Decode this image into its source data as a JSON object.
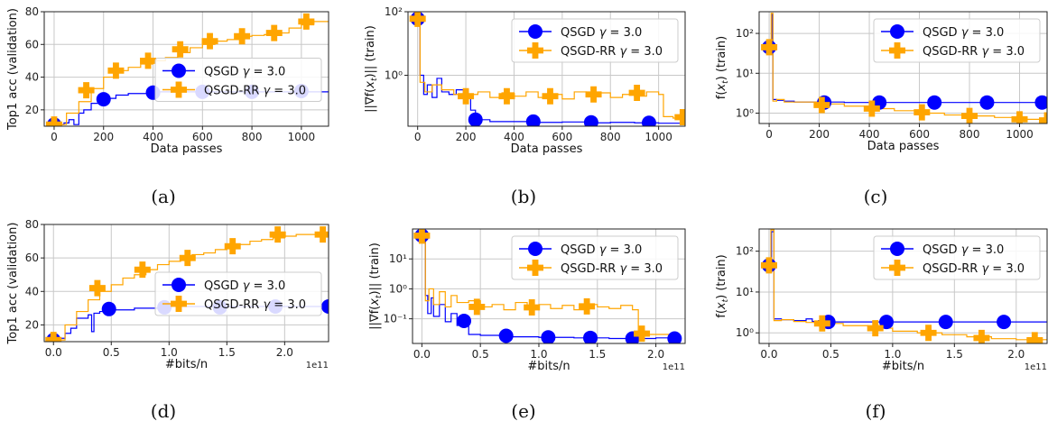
{
  "colors": {
    "qsgd": "#0000ff",
    "rr": "#ffa500",
    "grid": "#c8c8c8"
  },
  "chart_data": [
    {
      "type": "line",
      "caption": "(a)",
      "xlabel": "Data passes",
      "ylabel": "Top1 acc (validation)",
      "xlim": [
        -40,
        1110
      ],
      "ylim": [
        10,
        80
      ],
      "yscale": "linear",
      "xticks": [
        0,
        200,
        400,
        600,
        800,
        1000
      ],
      "xticklabels": [
        "0",
        "200",
        "400",
        "600",
        "800",
        "1000"
      ],
      "yticks": [
        20,
        40,
        60,
        80
      ],
      "yticklabels": [
        "20",
        "40",
        "60",
        "80"
      ],
      "xoffset": "",
      "grid": true,
      "legend": "center-right",
      "series": [
        {
          "name": "QSGD γ = 3.0",
          "color": "#0000ff",
          "marker": "circle",
          "x": [
            0,
            40,
            60,
            80,
            100,
            120,
            150,
            180,
            200,
            250,
            300,
            400,
            600,
            800,
            1000,
            1110
          ],
          "y": [
            11,
            12,
            14,
            11,
            18,
            20,
            24,
            26,
            27,
            29,
            30,
            31,
            31,
            31,
            31,
            31
          ],
          "mx": [
            0,
            200,
            400,
            600,
            800,
            1000
          ],
          "my": [
            11,
            26.5,
            30.5,
            31,
            31,
            31.5
          ]
        },
        {
          "name": "QSGD-RR γ = 3.0",
          "color": "#ffa500",
          "marker": "plus",
          "x": [
            0,
            50,
            100,
            150,
            200,
            250,
            300,
            350,
            400,
            450,
            500,
            550,
            600,
            650,
            700,
            750,
            800,
            850,
            900,
            950,
            1000,
            1050,
            1110
          ],
          "y": [
            11,
            18,
            25,
            33,
            40,
            44,
            46,
            48,
            50,
            52,
            55,
            58,
            60,
            62,
            63,
            65,
            65.5,
            66,
            67,
            70,
            72,
            74,
            74
          ],
          "mx": [
            0,
            130,
            250,
            380,
            510,
            630,
            760,
            890,
            1020
          ],
          "my": [
            11,
            32,
            44,
            50,
            57,
            62,
            65,
            67,
            74
          ]
        }
      ]
    },
    {
      "type": "line",
      "caption": "(b)",
      "xlabel": "Data passes",
      "ylabel": "||∇f(xt)|| (train)",
      "xlim": [
        -40,
        1110
      ],
      "ylim": [
        0.025,
        100
      ],
      "yscale": "log",
      "xticks": [
        0,
        200,
        400,
        600,
        800,
        1000
      ],
      "xticklabels": [
        "0",
        "200",
        "400",
        "600",
        "800",
        "1000"
      ],
      "yticks": [
        1,
        100
      ],
      "yticklabels": [
        "10⁰",
        "10²"
      ],
      "xoffset": "",
      "grid": true,
      "legend": "upper-right",
      "series": [
        {
          "name": "QSGD γ = 3.0",
          "color": "#0000ff",
          "marker": "circle",
          "x": [
            0,
            10,
            25,
            40,
            60,
            80,
            100,
            130,
            160,
            190,
            220,
            240,
            300,
            400,
            500,
            600,
            700,
            800,
            900,
            1000,
            1110
          ],
          "y": [
            60,
            1.0,
            0.25,
            0.5,
            0.2,
            0.8,
            0.3,
            0.25,
            0.35,
            0.2,
            0.08,
            0.04,
            0.035,
            0.035,
            0.033,
            0.034,
            0.032,
            0.033,
            0.032,
            0.031,
            0.033
          ],
          "mx": [
            0,
            240,
            480,
            720,
            960
          ],
          "my": [
            60,
            0.04,
            0.035,
            0.033,
            0.032
          ]
        },
        {
          "name": "QSGD-RR γ = 3.0",
          "color": "#ffa500",
          "marker": "plus",
          "x": [
            0,
            10,
            30,
            60,
            100,
            150,
            200,
            250,
            300,
            350,
            400,
            450,
            500,
            550,
            600,
            650,
            700,
            750,
            800,
            850,
            900,
            950,
            1000,
            1020,
            1060,
            1110
          ],
          "y": [
            60,
            0.6,
            0.3,
            0.5,
            0.35,
            0.25,
            0.25,
            0.3,
            0.2,
            0.28,
            0.22,
            0.3,
            0.2,
            0.25,
            0.18,
            0.3,
            0.22,
            0.28,
            0.2,
            0.25,
            0.22,
            0.3,
            0.25,
            0.05,
            0.045,
            0.045
          ],
          "mx": [
            0,
            200,
            370,
            550,
            730,
            910,
            1100
          ],
          "my": [
            60,
            0.22,
            0.22,
            0.22,
            0.25,
            0.28,
            0.048
          ]
        }
      ]
    },
    {
      "type": "line",
      "caption": "(c)",
      "xlabel": "Data passes",
      "ylabel": "f(xt) (train)",
      "xlim": [
        -40,
        1110
      ],
      "ylim": [
        0.55,
        350
      ],
      "yscale": "log",
      "xticks": [
        0,
        200,
        400,
        600,
        800,
        1000
      ],
      "xticklabels": [
        "0",
        "200",
        "400",
        "600",
        "800",
        "1000"
      ],
      "yticks": [
        1,
        10,
        100
      ],
      "yticklabels": [
        "10⁰",
        "10¹",
        "10²"
      ],
      "xoffset": "",
      "grid": true,
      "legend": "upper-right",
      "series": [
        {
          "name": "QSGD γ = 3.0",
          "color": "#0000ff",
          "marker": "circle",
          "x": [
            0,
            10,
            15,
            30,
            60,
            100,
            200,
            300,
            400,
            600,
            800,
            1000,
            1110
          ],
          "y": [
            45,
            300,
            2.2,
            2.1,
            2.0,
            1.9,
            1.9,
            1.85,
            1.85,
            1.85,
            1.85,
            1.85,
            1.85
          ],
          "mx": [
            0,
            220,
            440,
            660,
            870,
            1090
          ],
          "my": [
            45,
            1.85,
            1.85,
            1.85,
            1.85,
            1.85
          ]
        },
        {
          "name": "QSGD-RR γ = 3.0",
          "color": "#ffa500",
          "marker": "plus",
          "x": [
            0,
            8,
            15,
            30,
            60,
            100,
            200,
            300,
            400,
            500,
            600,
            700,
            800,
            900,
            1000,
            1110
          ],
          "y": [
            45,
            320,
            2.0,
            2.2,
            1.9,
            1.9,
            1.7,
            1.5,
            1.3,
            1.15,
            1.0,
            0.9,
            0.85,
            0.78,
            0.7,
            0.68
          ],
          "mx": [
            0,
            210,
            410,
            610,
            800,
            1000,
            1110
          ],
          "my": [
            45,
            1.6,
            1.3,
            1.05,
            0.85,
            0.7,
            0.66
          ]
        }
      ]
    },
    {
      "type": "line",
      "caption": "(d)",
      "xlabel": "#bits/n",
      "ylabel": "Top1 acc (validation)",
      "xlim": [
        -0.08,
        2.38
      ],
      "ylim": [
        10,
        80
      ],
      "yscale": "linear",
      "xticks": [
        0,
        0.5,
        1.0,
        1.5,
        2.0
      ],
      "xticklabels": [
        "0.0",
        "0.5",
        "1.0",
        "1.5",
        "2.0"
      ],
      "yticks": [
        20,
        40,
        60,
        80
      ],
      "yticklabels": [
        "20",
        "40",
        "60",
        "80"
      ],
      "xoffset": "1e11",
      "grid": true,
      "legend": "center-right",
      "series": [
        {
          "name": "QSGD γ = 3.0",
          "color": "#0000ff",
          "marker": "circle",
          "x": [
            0,
            0.05,
            0.1,
            0.15,
            0.2,
            0.3,
            0.33,
            0.35,
            0.4,
            0.5,
            0.7,
            1.0,
            1.5,
            2.0,
            2.38
          ],
          "y": [
            11,
            12,
            15,
            18,
            24,
            26,
            16,
            27,
            28,
            29,
            30,
            31,
            31,
            31,
            31
          ],
          "mx": [
            0,
            0.48,
            0.96,
            1.44,
            1.92,
            2.38
          ],
          "my": [
            11,
            29.5,
            30.5,
            30.5,
            31,
            31
          ]
        },
        {
          "name": "QSGD-RR γ = 3.0",
          "color": "#ffa500",
          "marker": "plus",
          "x": [
            0,
            0.1,
            0.2,
            0.3,
            0.4,
            0.5,
            0.6,
            0.7,
            0.8,
            0.9,
            1.0,
            1.1,
            1.2,
            1.3,
            1.4,
            1.5,
            1.6,
            1.7,
            1.8,
            1.9,
            2.0,
            2.1,
            2.2,
            2.38
          ],
          "y": [
            11,
            20,
            28,
            35,
            40,
            44,
            48,
            50,
            53,
            56,
            58,
            60,
            62,
            63,
            65,
            66,
            68,
            70,
            71,
            72,
            73,
            74,
            74,
            74
          ],
          "mx": [
            0,
            0.38,
            0.77,
            1.16,
            1.55,
            1.94,
            2.33
          ],
          "my": [
            11,
            42,
            53,
            60,
            67,
            74,
            74
          ]
        }
      ]
    },
    {
      "type": "line",
      "caption": "(e)",
      "xlabel": "#bits/n",
      "ylabel": "||∇f(xt)|| (train)",
      "xlim": [
        -0.08,
        2.25
      ],
      "ylim": [
        0.015,
        100
      ],
      "yscale": "log",
      "xticks": [
        0,
        0.5,
        1.0,
        1.5,
        2.0
      ],
      "xticklabels": [
        "0.0",
        "0.5",
        "1.0",
        "1.5",
        "2.0"
      ],
      "yticks": [
        0.1,
        1,
        10
      ],
      "yticklabels": [
        "10⁻¹",
        "10⁰",
        "10¹"
      ],
      "xoffset": "1e11",
      "grid": true,
      "legend": "upper-right",
      "series": [
        {
          "name": "QSGD γ = 3.0",
          "color": "#0000ff",
          "marker": "circle",
          "x": [
            0,
            0.03,
            0.05,
            0.08,
            0.1,
            0.15,
            0.2,
            0.25,
            0.3,
            0.35,
            0.4,
            0.5,
            0.7,
            1.0,
            1.3,
            1.6,
            1.8,
            2.0,
            2.2
          ],
          "y": [
            60,
            0.6,
            0.15,
            0.5,
            0.12,
            0.3,
            0.08,
            0.15,
            0.06,
            0.09,
            0.03,
            0.028,
            0.025,
            0.024,
            0.023,
            0.022,
            0.022,
            0.023,
            0.022
          ],
          "mx": [
            0,
            0.36,
            0.72,
            1.08,
            1.44,
            1.8,
            2.16
          ],
          "my": [
            60,
            0.085,
            0.027,
            0.024,
            0.023,
            0.022,
            0.022
          ]
        },
        {
          "name": "QSGD-RR γ = 3.0",
          "color": "#ffa500",
          "marker": "plus",
          "x": [
            0,
            0.03,
            0.06,
            0.1,
            0.15,
            0.2,
            0.25,
            0.3,
            0.4,
            0.5,
            0.6,
            0.7,
            0.8,
            0.9,
            1.0,
            1.1,
            1.2,
            1.3,
            1.4,
            1.5,
            1.6,
            1.7,
            1.8,
            1.85,
            1.9,
            2.2
          ],
          "y": [
            60,
            0.4,
            1.0,
            0.3,
            0.8,
            0.25,
            0.6,
            0.35,
            0.4,
            0.25,
            0.3,
            0.2,
            0.35,
            0.25,
            0.3,
            0.22,
            0.28,
            0.2,
            0.3,
            0.25,
            0.22,
            0.28,
            0.2,
            0.03,
            0.03,
            0.03
          ],
          "mx": [
            0,
            0.47,
            0.94,
            1.41,
            1.88
          ],
          "my": [
            60,
            0.25,
            0.24,
            0.26,
            0.032
          ]
        }
      ]
    },
    {
      "type": "line",
      "caption": "(f)",
      "xlabel": "#bits/n",
      "ylabel": "f(xt) (train)",
      "xlim": [
        -0.08,
        2.25
      ],
      "ylim": [
        0.55,
        350
      ],
      "yscale": "log",
      "xticks": [
        0,
        0.5,
        1.0,
        1.5,
        2.0
      ],
      "xticklabels": [
        "0.0",
        "0.5",
        "1.0",
        "1.5",
        "2.0"
      ],
      "yticks": [
        1,
        10,
        100
      ],
      "yticklabels": [
        "10⁰",
        "10¹",
        "10²"
      ],
      "xoffset": "1e11",
      "grid": true,
      "legend": "upper-right",
      "series": [
        {
          "name": "QSGD γ = 3.0",
          "color": "#0000ff",
          "marker": "circle",
          "x": [
            0,
            0.02,
            0.04,
            0.1,
            0.2,
            0.3,
            0.35,
            0.4,
            0.5,
            1.0,
            1.5,
            2.0,
            2.25
          ],
          "y": [
            45,
            300,
            2.2,
            2.1,
            2.0,
            2.2,
            1.9,
            2.0,
            1.85,
            1.85,
            1.85,
            1.85,
            1.85
          ],
          "mx": [
            0,
            0.48,
            0.95,
            1.43,
            1.9
          ],
          "my": [
            45,
            1.85,
            1.85,
            1.85,
            1.85
          ]
        },
        {
          "name": "QSGD-RR γ = 3.0",
          "color": "#ffa500",
          "marker": "plus",
          "x": [
            0,
            0.015,
            0.04,
            0.1,
            0.2,
            0.3,
            0.4,
            0.6,
            0.8,
            1.0,
            1.2,
            1.4,
            1.6,
            1.8,
            2.0,
            2.25
          ],
          "y": [
            45,
            330,
            2.0,
            2.1,
            1.9,
            1.8,
            1.7,
            1.5,
            1.3,
            1.1,
            1.0,
            0.9,
            0.8,
            0.72,
            0.68,
            0.66
          ],
          "mx": [
            0,
            0.43,
            0.86,
            1.29,
            1.72,
            2.15
          ],
          "my": [
            45,
            1.7,
            1.3,
            1.0,
            0.75,
            0.66
          ]
        }
      ]
    }
  ]
}
